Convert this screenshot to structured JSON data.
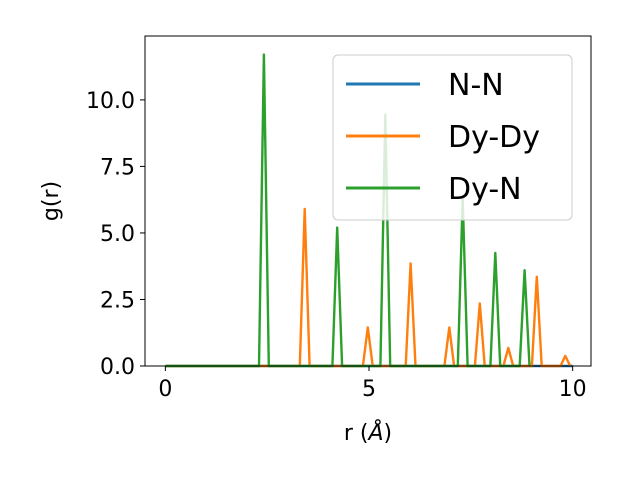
{
  "chart_data": {
    "type": "line",
    "xlabel_prefix": "r (",
    "xlabel_unit": "Å",
    "xlabel_suffix": ")",
    "ylabel": "g(r)",
    "xlim": [
      -0.5,
      10.45
    ],
    "ylim": [
      0,
      12.4
    ],
    "xticks": [
      0,
      5,
      10
    ],
    "xtick_labels": [
      "0",
      "5",
      "10"
    ],
    "yticks": [
      0.0,
      2.5,
      5.0,
      7.5,
      10.0
    ],
    "ytick_labels": [
      "0.0",
      "2.5",
      "5.0",
      "7.5",
      "10.0"
    ],
    "legend_position": "top-right",
    "series": [
      {
        "name": "N-N",
        "color": "#1f77b4",
        "x": [
          0,
          10
        ],
        "y": [
          0,
          0
        ]
      },
      {
        "name": "Dy-Dy",
        "color": "#ff7f0e",
        "x": [
          0,
          3.3,
          3.42,
          3.54,
          4.85,
          4.97,
          5.09,
          5.9,
          6.02,
          6.14,
          6.85,
          6.97,
          7.09,
          7.6,
          7.72,
          7.84,
          8.3,
          8.42,
          8.54,
          9.0,
          9.12,
          9.24,
          9.7,
          9.82,
          9.94
        ],
        "y": [
          0,
          0,
          5.9,
          0,
          0,
          1.45,
          0,
          0,
          3.85,
          0,
          0,
          1.45,
          0,
          0,
          2.35,
          0,
          0,
          0.68,
          0,
          0,
          3.35,
          0,
          0,
          0.38,
          0
        ]
      },
      {
        "name": "Dy-N",
        "color": "#2ca02c",
        "x": [
          0,
          2.3,
          2.42,
          2.54,
          4.1,
          4.22,
          4.34,
          5.28,
          5.4,
          5.52,
          7.18,
          7.3,
          7.42,
          7.98,
          8.1,
          8.22,
          8.7,
          8.82,
          8.94
        ],
        "y": [
          0,
          0,
          11.7,
          0,
          0,
          5.2,
          0,
          0,
          9.45,
          0,
          0,
          6.3,
          0,
          0,
          4.25,
          0,
          0,
          3.6,
          0
        ]
      }
    ]
  }
}
